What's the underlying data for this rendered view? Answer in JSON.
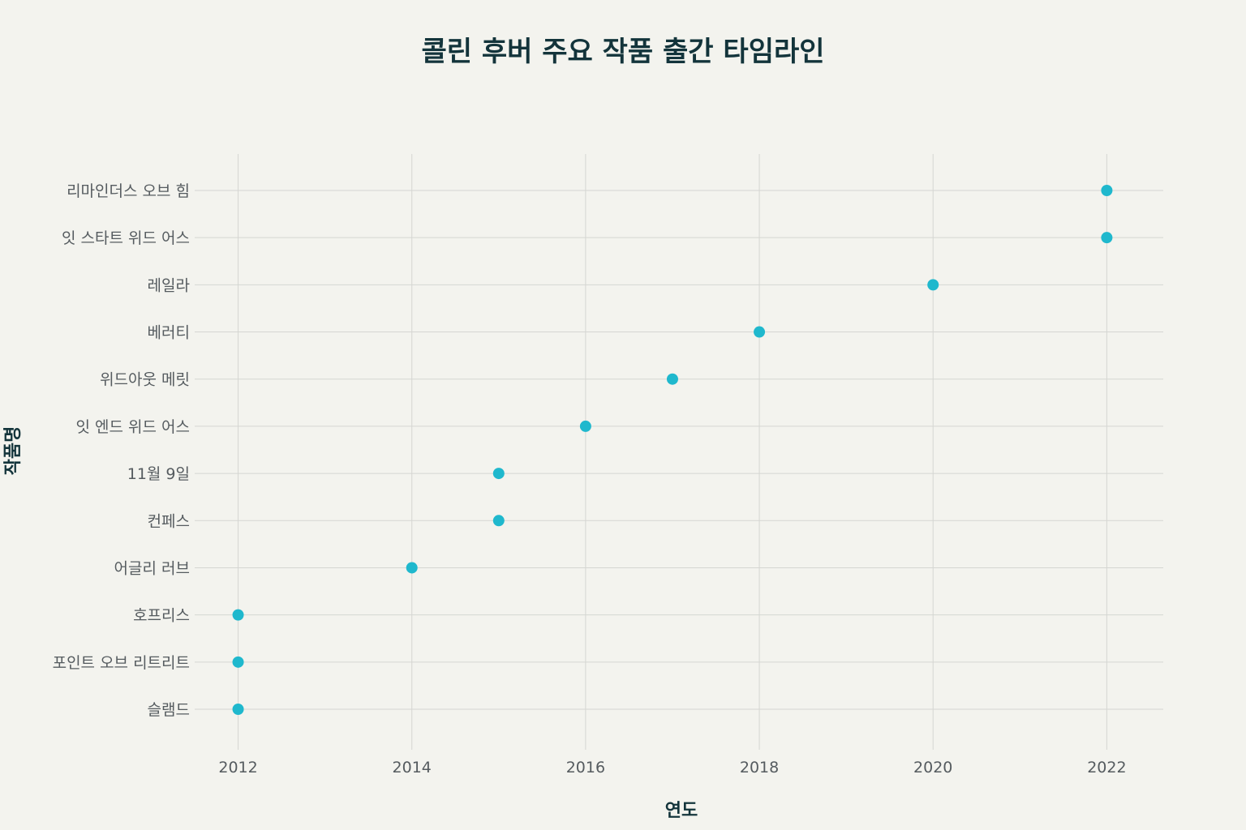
{
  "chart_data": {
    "type": "scatter",
    "title": "콜린 후버 주요 작품 출간 타임라인",
    "xlabel": "연도",
    "ylabel": "작품명",
    "xlim": [
      2011.5,
      2022.65
    ],
    "x_ticks": [
      2012,
      2014,
      2016,
      2018,
      2020,
      2022
    ],
    "categories": [
      "슬램드",
      "포인트 오브 리트리트",
      "호프리스",
      "어글리 러브",
      "컨페스",
      "11월 9일",
      "잇 엔드 위드 어스",
      "위드아웃 메릿",
      "베러티",
      "레일라",
      "잇 스타트 위드 어스",
      "리마인더스 오브 힘"
    ],
    "series": [
      {
        "values": [
          2012,
          2012,
          2012,
          2014,
          2015,
          2015,
          2016,
          2017,
          2018,
          2020,
          2022,
          2022
        ]
      }
    ],
    "grid": true,
    "legend": false,
    "marker_color": "#1fb8cd",
    "grid_color": "#d5d6d2",
    "background": "#f3f3ee"
  }
}
